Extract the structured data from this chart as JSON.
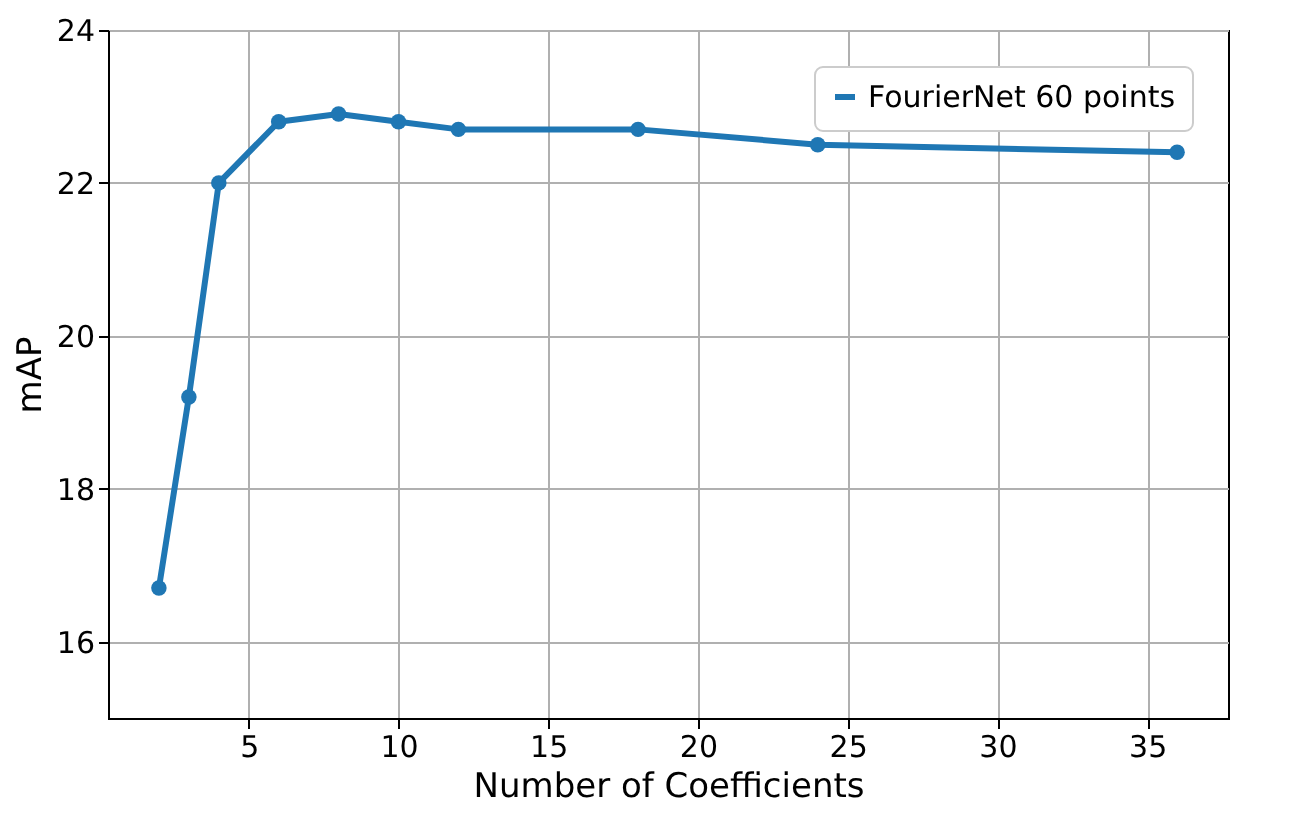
{
  "chart_data": {
    "type": "line",
    "xlabel": "Number of Coefficients",
    "ylabel": "mAP",
    "x": [
      2,
      3,
      4,
      6,
      8,
      10,
      12,
      18,
      24,
      36
    ],
    "series": [
      {
        "name": "FourierNet 60 points",
        "color": "#1f77b4",
        "values": [
          16.7,
          19.2,
          22.0,
          22.8,
          22.9,
          22.8,
          22.7,
          22.7,
          22.5,
          22.4
        ]
      }
    ],
    "xlim": [
      0.3,
      37.7
    ],
    "xticks": [
      5,
      10,
      15,
      20,
      25,
      30,
      35
    ],
    "ylim": [
      15,
      24
    ],
    "yticks": [
      16,
      18,
      20,
      22,
      24
    ],
    "grid": true,
    "legend": "top right",
    "marker": "circle",
    "line_style": "solid"
  }
}
